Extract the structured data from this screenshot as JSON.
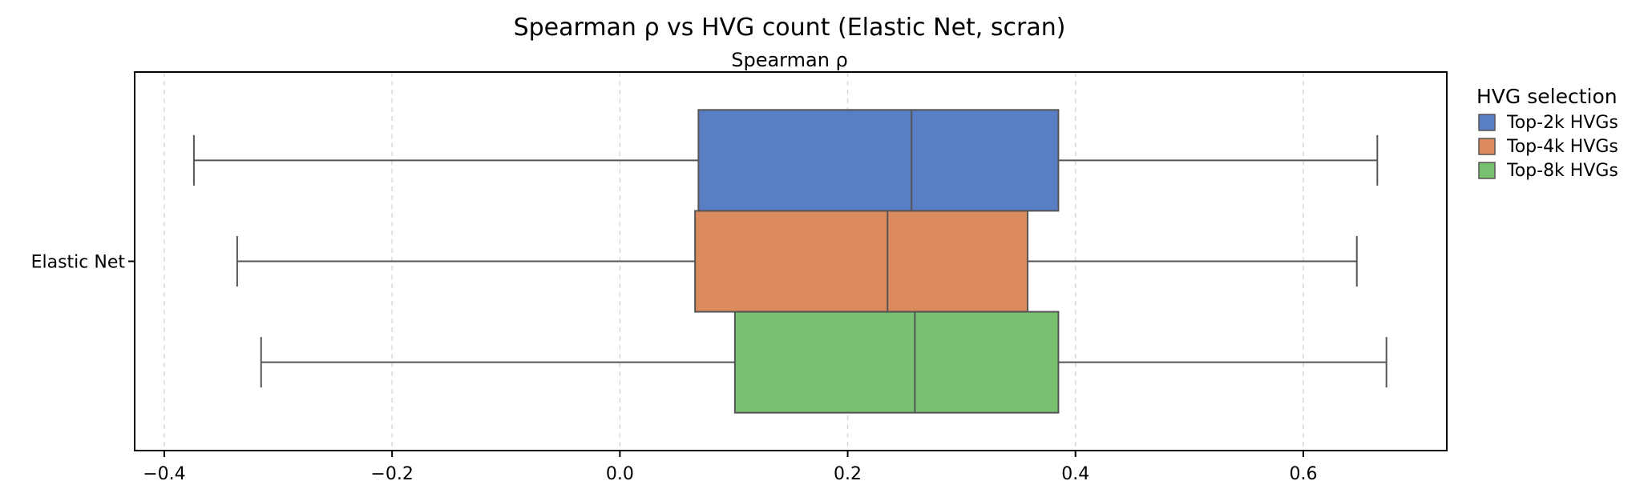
{
  "chart_data": {
    "type": "boxplot",
    "orientation": "horizontal",
    "title": "Spearman ρ vs HVG count (Elastic Net, scran)",
    "subtitle": "Spearman ρ",
    "xlabel": "",
    "ylabel": "",
    "xlim": [
      -0.426,
      0.726
    ],
    "xticks": [
      -0.4,
      -0.2,
      0.0,
      0.2,
      0.4,
      0.6
    ],
    "xtick_labels": [
      "−0.4",
      "−0.2",
      "0.0",
      "0.2",
      "0.4",
      "0.6"
    ],
    "categories": [
      "Elastic Net"
    ],
    "grid": {
      "x": true,
      "y": false,
      "style": "dashed"
    },
    "legend": {
      "title": "HVG selection",
      "placement": "outside-top-right"
    },
    "series": [
      {
        "name": "Top-2k HVGs",
        "color": "#5a7ec3",
        "whisker_low": -0.374,
        "q1": 0.069,
        "median": 0.256,
        "q3": 0.385,
        "whisker_high": 0.665
      },
      {
        "name": "Top-4k HVGs",
        "color": "#db8a5d",
        "whisker_low": -0.336,
        "q1": 0.066,
        "median": 0.235,
        "q3": 0.358,
        "whisker_high": 0.647
      },
      {
        "name": "Top-8k HVGs",
        "color": "#77c06f",
        "whisker_low": -0.315,
        "q1": 0.101,
        "median": 0.259,
        "q3": 0.385,
        "whisker_high": 0.673
      }
    ]
  }
}
